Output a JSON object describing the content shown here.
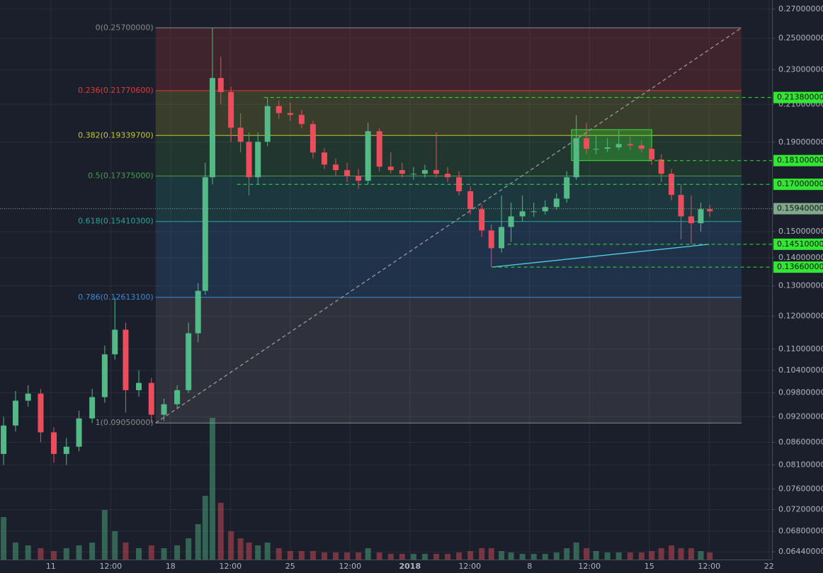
{
  "chart_data": {
    "type": "candlestick",
    "log_scale": true,
    "grid": true,
    "background": "#1b1f2b",
    "up_color": "#53b987",
    "down_color": "#eb4d5c",
    "xlim": [
      0.15,
      13.05
    ],
    "xticks": [
      {
        "value": 1,
        "label": "11"
      },
      {
        "value": 2,
        "label": "12:00"
      },
      {
        "value": 3,
        "label": "18"
      },
      {
        "value": 4,
        "label": "12:00"
      },
      {
        "value": 5,
        "label": "25"
      },
      {
        "value": 6,
        "label": "12:00"
      },
      {
        "value": 7,
        "label": "2018"
      },
      {
        "value": 8,
        "label": "12:00"
      },
      {
        "value": 9,
        "label": "8"
      },
      {
        "value": 10,
        "label": "12:00"
      },
      {
        "value": 11,
        "label": "15"
      },
      {
        "value": 12,
        "label": "12:00"
      },
      {
        "value": 13,
        "label": "22"
      }
    ],
    "ylim": [
      0.0631,
      0.2766
    ],
    "yticks": [
      {
        "value": 0.27,
        "label": "0.27000000"
      },
      {
        "value": 0.25,
        "label": "0.25000000"
      },
      {
        "value": 0.23,
        "label": "0.23000000"
      },
      {
        "value": 0.21,
        "label": "0.21000000"
      },
      {
        "value": 0.19,
        "label": "0.19000000"
      },
      {
        "value": 0.15,
        "label": "0.15000000"
      },
      {
        "value": 0.14,
        "label": "0.14000000"
      },
      {
        "value": 0.13,
        "label": "0.13000000"
      },
      {
        "value": 0.12,
        "label": "0.12000000"
      },
      {
        "value": 0.11,
        "label": "0.11000000"
      },
      {
        "value": 0.104,
        "label": "0.10400000"
      },
      {
        "value": 0.098,
        "label": "0.09800000"
      },
      {
        "value": 0.092,
        "label": "0.09200000"
      },
      {
        "value": 0.086,
        "label": "0.08600000"
      },
      {
        "value": 0.081,
        "label": "0.08100000"
      },
      {
        "value": 0.076,
        "label": "0.07600000"
      },
      {
        "value": 0.072,
        "label": "0.07200000"
      },
      {
        "value": 0.068,
        "label": "0.06800000"
      },
      {
        "value": 0.0644,
        "label": "0.06440000"
      }
    ],
    "x": [
      0.21,
      0.41,
      0.62,
      0.83,
      1.05,
      1.26,
      1.47,
      1.69,
      1.9,
      2.07,
      2.25,
      2.47,
      2.68,
      2.89,
      3.11,
      3.3,
      3.46,
      3.58,
      3.7,
      3.84,
      4.01,
      4.17,
      4.31,
      4.46,
      4.62,
      4.81,
      5.0,
      5.19,
      5.38,
      5.57,
      5.76,
      5.95,
      6.14,
      6.3,
      6.49,
      6.68,
      6.87,
      7.06,
      7.25,
      7.44,
      7.63,
      7.82,
      8.01,
      8.2,
      8.36,
      8.53,
      8.69,
      8.88,
      9.07,
      9.26,
      9.45,
      9.62,
      9.78,
      9.95,
      10.11,
      10.3,
      10.49,
      10.68,
      10.87,
      11.04,
      11.2,
      11.37,
      11.53,
      11.7,
      11.86,
      12.01
    ],
    "open": [
      0.0834,
      0.0899,
      0.096,
      0.0978,
      0.0883,
      0.0834,
      0.085,
      0.0916,
      0.0969,
      0.1085,
      0.1158,
      0.0987,
      0.1006,
      0.0925,
      0.0951,
      0.0987,
      0.1147,
      0.1283,
      0.1732,
      0.2251,
      0.2169,
      0.1974,
      0.1902,
      0.1732,
      0.1902,
      0.209,
      0.2052,
      0.2042,
      0.1993,
      0.1849,
      0.1791,
      0.1765,
      0.1738,
      0.1716,
      0.1956,
      0.1781,
      0.1765,
      0.1748,
      0.1748,
      0.1765,
      0.1748,
      0.1732,
      0.1669,
      0.1592,
      0.1505,
      0.1436,
      0.1519,
      0.1562,
      0.1583,
      0.1583,
      0.1601,
      0.1637,
      0.1732,
      0.192,
      0.1867,
      0.1867,
      0.1874,
      0.1891,
      0.1884,
      0.1867,
      0.1815,
      0.1748,
      0.1653,
      0.1562,
      0.1534,
      0.1592
    ],
    "high": [
      0.092,
      0.0985,
      0.1,
      0.099,
      0.0895,
      0.087,
      0.0935,
      0.099,
      0.111,
      0.126,
      0.118,
      0.104,
      0.102,
      0.0965,
      0.1,
      0.118,
      0.131,
      0.18,
      0.257,
      0.238,
      0.22,
      0.205,
      0.195,
      0.195,
      0.2138,
      0.212,
      0.211,
      0.207,
      0.201,
      0.187,
      0.182,
      0.18,
      0.177,
      0.2,
      0.197,
      0.185,
      0.18,
      0.178,
      0.179,
      0.195,
      0.178,
      0.176,
      0.169,
      0.161,
      0.153,
      0.165,
      0.162,
      0.165,
      0.162,
      0.163,
      0.166,
      0.176,
      0.204,
      0.2,
      0.193,
      0.192,
      0.196,
      0.193,
      0.191,
      0.188,
      0.184,
      0.177,
      0.17,
      0.165,
      0.162,
      0.161
    ],
    "low": [
      0.081,
      0.0885,
      0.0945,
      0.086,
      0.0815,
      0.081,
      0.084,
      0.0905,
      0.0955,
      0.107,
      0.093,
      0.097,
      0.0905,
      0.091,
      0.094,
      0.098,
      0.112,
      0.127,
      0.17,
      0.21,
      0.19,
      0.185,
      0.165,
      0.17,
      0.188,
      0.202,
      0.201,
      0.197,
      0.182,
      0.177,
      0.174,
      0.171,
      0.168,
      0.17,
      0.176,
      0.175,
      0.173,
      0.172,
      0.173,
      0.173,
      0.171,
      0.165,
      0.157,
      0.148,
      0.1366,
      0.142,
      0.146,
      0.154,
      0.156,
      0.157,
      0.159,
      0.162,
      0.172,
      0.184,
      0.184,
      0.185,
      0.186,
      0.186,
      0.185,
      0.179,
      0.171,
      0.163,
      0.147,
      0.1451,
      0.15,
      0.156
    ],
    "close": [
      0.0899,
      0.096,
      0.0978,
      0.0883,
      0.0834,
      0.085,
      0.0916,
      0.0969,
      0.1085,
      0.1158,
      0.0987,
      0.1006,
      0.0925,
      0.0951,
      0.0987,
      0.1147,
      0.1283,
      0.1732,
      0.2251,
      0.2169,
      0.1974,
      0.1902,
      0.1732,
      0.1902,
      0.209,
      0.2052,
      0.2042,
      0.1993,
      0.1849,
      0.1791,
      0.1765,
      0.1738,
      0.1716,
      0.1956,
      0.1781,
      0.1765,
      0.1748,
      0.1748,
      0.1765,
      0.1748,
      0.1732,
      0.1669,
      0.1592,
      0.1505,
      0.1436,
      0.1519,
      0.1562,
      0.1583,
      0.1583,
      0.1601,
      0.1637,
      0.1732,
      0.192,
      0.1867,
      0.1867,
      0.1874,
      0.1891,
      0.1884,
      0.1867,
      0.1815,
      0.1748,
      0.1653,
      0.1562,
      0.1534,
      0.1592,
      0.1583
    ],
    "volume": {
      "lim": [
        0,
        100
      ],
      "values": [
        30,
        12,
        10,
        8,
        6,
        8,
        10,
        12,
        35,
        20,
        12,
        8,
        10,
        8,
        10,
        15,
        25,
        45,
        100,
        40,
        20,
        15,
        12,
        10,
        12,
        8,
        6,
        6,
        6,
        5,
        5,
        5,
        5,
        8,
        5,
        4,
        4,
        4,
        4,
        4,
        4,
        5,
        6,
        8,
        8,
        6,
        5,
        4,
        4,
        4,
        5,
        8,
        12,
        8,
        6,
        5,
        5,
        5,
        5,
        6,
        8,
        10,
        8,
        8,
        6,
        5
      ]
    },
    "fib": {
      "x": [
        2.75,
        12.54
      ],
      "levels": [
        {
          "value": 0.257,
          "label": "0(0.25700000)",
          "color": "#8a8a8a"
        },
        {
          "value": 0.217706,
          "label": "0.236(0.21770600)",
          "color": "#e53935"
        },
        {
          "value": 0.193397,
          "label": "0.382(0.19339700)",
          "color": "#c0ca33"
        },
        {
          "value": 0.17375,
          "label": "0.5(0.17375000)",
          "color": "#43a047"
        },
        {
          "value": 0.154103,
          "label": "0.618(0.15410300)",
          "color": "#26a69a"
        },
        {
          "value": 0.126131,
          "label": "0.786(0.12613100)",
          "color": "#3a8bd6"
        },
        {
          "value": 0.0905,
          "label": "1(0.09050000)",
          "color": "#8a8a8a"
        }
      ]
    },
    "price_lines": [
      {
        "value": 0.2138,
        "label": "0.21380000",
        "x_start": 4.56,
        "color": "#33e633",
        "style": "dashed"
      },
      {
        "value": 0.181,
        "label": "0.18100000",
        "x_start": 10.98,
        "color": "#33e633",
        "style": "dashed"
      },
      {
        "value": 0.17,
        "label": "0.17000000",
        "x_start": 4.11,
        "color": "#33e633",
        "style": "dashed"
      },
      {
        "value": 0.1594,
        "label": "0.15940000",
        "x_start": 0.15,
        "color": "#7fa98a",
        "style": "dotted"
      },
      {
        "value": 0.1451,
        "label": "0.14510000",
        "x_start": 8.63,
        "color": "#33e633",
        "style": "dashed"
      },
      {
        "value": 0.1366,
        "label": "0.13660000",
        "x_start": 8.37,
        "color": "#33e633",
        "style": "dashed"
      }
    ],
    "trend_lines": [
      {
        "x": [
          2.75,
          12.54
        ],
        "y": [
          0.0905,
          0.257
        ],
        "color": "#9a9a9a",
        "style": "dashed"
      },
      {
        "x": [
          8.37,
          12.0
        ],
        "y": [
          0.1366,
          0.1451
        ],
        "color": "#4dd0e1",
        "style": "solid"
      }
    ],
    "boxes": [
      {
        "x": [
          9.7,
          11.04
        ],
        "y": [
          0.181,
          0.1964
        ],
        "color": "#39e639"
      }
    ]
  }
}
